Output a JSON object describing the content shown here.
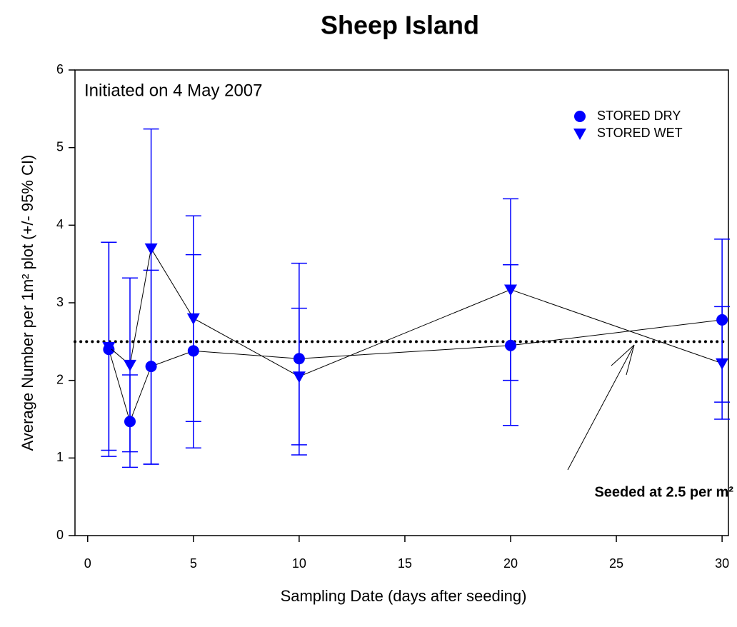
{
  "chart_data": {
    "type": "scatter",
    "title": "Sheep Island",
    "xlabel": "Sampling Date (days after seeding)",
    "ylabel": "Average Number per 1m² plot (+/- 95% CI)",
    "annotations": [
      "Initiated on 4 May 2007",
      "Seeded at 2.5 per m²"
    ],
    "reference_line": 2.5,
    "xlim": [
      -0.6,
      30.3
    ],
    "ylim": [
      0,
      6
    ],
    "xticks": [
      0,
      5,
      10,
      15,
      20,
      25,
      30
    ],
    "yticks": [
      0,
      1,
      2,
      3,
      4,
      5,
      6
    ],
    "legend": "upper right",
    "series": [
      {
        "name": "STORED DRY",
        "marker": "circle",
        "color": "#0000ff",
        "x": [
          1,
          2,
          3,
          5,
          10,
          20,
          30
        ],
        "values": [
          2.4,
          1.47,
          2.18,
          2.38,
          2.28,
          2.45,
          2.78
        ],
        "lower": [
          1.02,
          0.88,
          0.92,
          1.13,
          1.04,
          1.42,
          1.5
        ],
        "upper": [
          3.78,
          2.07,
          3.42,
          3.62,
          3.51,
          3.49,
          3.82
        ]
      },
      {
        "name": "STORED WET",
        "marker": "triangle-down",
        "color": "#0000ff",
        "x": [
          1,
          2,
          3,
          5,
          10,
          20,
          30
        ],
        "values": [
          2.43,
          2.2,
          3.7,
          2.8,
          2.05,
          3.17,
          2.22
        ],
        "lower": [
          1.1,
          1.08,
          0.92,
          1.47,
          1.17,
          2.0,
          1.72
        ],
        "upper": [
          3.78,
          3.32,
          5.24,
          4.12,
          2.93,
          4.34,
          2.95
        ]
      }
    ]
  }
}
